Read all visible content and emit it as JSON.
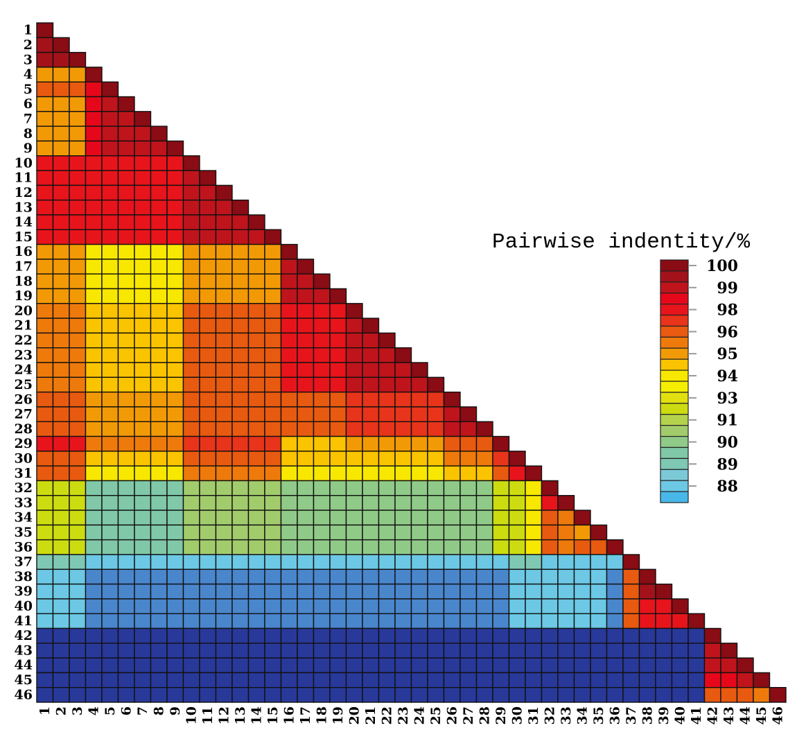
{
  "chart_data": {
    "type": "heatmap",
    "title": "Pairwise indentity/%",
    "xlabel": "",
    "ylabel": "",
    "shape": "lower-triangular",
    "categories": [
      "1",
      "2",
      "3",
      "4",
      "5",
      "6",
      "7",
      "8",
      "9",
      "10",
      "11",
      "12",
      "13",
      "14",
      "15",
      "16",
      "17",
      "18",
      "19",
      "20",
      "21",
      "22",
      "23",
      "24",
      "25",
      "26",
      "27",
      "28",
      "29",
      "30",
      "31",
      "32",
      "33",
      "34",
      "35",
      "36",
      "37",
      "38",
      "39",
      "40",
      "41",
      "42",
      "43",
      "44",
      "45",
      "46"
    ],
    "diagonal_value": 100,
    "blocks_note_order": "later blocks override earlier ones; only cells with col <= row are shown",
    "blocks": [
      {
        "rows": [
          2,
          3
        ],
        "cols": [
          1,
          2
        ],
        "value": 99.5
      },
      {
        "rows": [
          4,
          9
        ],
        "cols": [
          1,
          3
        ],
        "value": 95
      },
      {
        "rows": [
          5,
          5
        ],
        "cols": [
          1,
          3
        ],
        "value": 96
      },
      {
        "rows": [
          4,
          9
        ],
        "cols": [
          4,
          8
        ],
        "value": 99
      },
      {
        "rows": [
          5,
          9
        ],
        "cols": [
          4,
          4
        ],
        "value": 98.5
      },
      {
        "rows": [
          10,
          15
        ],
        "cols": [
          1,
          9
        ],
        "value": 97.5
      },
      {
        "rows": [
          10,
          15
        ],
        "cols": [
          4,
          8
        ],
        "value": 98
      },
      {
        "rows": [
          10,
          15
        ],
        "cols": [
          10,
          14
        ],
        "value": 99
      },
      {
        "rows": [
          16,
          19
        ],
        "cols": [
          1,
          3
        ],
        "value": 95
      },
      {
        "rows": [
          16,
          19
        ],
        "cols": [
          4,
          9
        ],
        "value": 94
      },
      {
        "rows": [
          16,
          19
        ],
        "cols": [
          10,
          15
        ],
        "value": 95
      },
      {
        "rows": [
          16,
          19
        ],
        "cols": [
          16,
          18
        ],
        "value": 99
      },
      {
        "rows": [
          20,
          25
        ],
        "cols": [
          1,
          3
        ],
        "value": 95.5
      },
      {
        "rows": [
          20,
          25
        ],
        "cols": [
          4,
          9
        ],
        "value": 94.5
      },
      {
        "rows": [
          20,
          25
        ],
        "cols": [
          10,
          15
        ],
        "value": 96
      },
      {
        "rows": [
          20,
          25
        ],
        "cols": [
          16,
          19
        ],
        "value": 98
      },
      {
        "rows": [
          20,
          25
        ],
        "cols": [
          20,
          24
        ],
        "value": 99
      },
      {
        "rows": [
          26,
          28
        ],
        "cols": [
          1,
          3
        ],
        "value": 96
      },
      {
        "rows": [
          26,
          28
        ],
        "cols": [
          4,
          9
        ],
        "value": 95
      },
      {
        "rows": [
          26,
          28
        ],
        "cols": [
          10,
          19
        ],
        "value": 96
      },
      {
        "rows": [
          26,
          28
        ],
        "cols": [
          20,
          25
        ],
        "value": 97
      },
      {
        "rows": [
          26,
          28
        ],
        "cols": [
          26,
          27
        ],
        "value": 99
      },
      {
        "rows": [
          29,
          29
        ],
        "cols": [
          1,
          3
        ],
        "value": 98
      },
      {
        "rows": [
          29,
          29
        ],
        "cols": [
          4,
          9
        ],
        "value": 95.5
      },
      {
        "rows": [
          29,
          29
        ],
        "cols": [
          10,
          15
        ],
        "value": 97
      },
      {
        "rows": [
          29,
          29
        ],
        "cols": [
          16,
          19
        ],
        "value": 94.5
      },
      {
        "rows": [
          29,
          29
        ],
        "cols": [
          20,
          25
        ],
        "value": 95
      },
      {
        "rows": [
          29,
          29
        ],
        "cols": [
          26,
          28
        ],
        "value": 96
      },
      {
        "rows": [
          30,
          30
        ],
        "cols": [
          1,
          3
        ],
        "value": 96
      },
      {
        "rows": [
          30,
          30
        ],
        "cols": [
          4,
          9
        ],
        "value": 94.5
      },
      {
        "rows": [
          30,
          30
        ],
        "cols": [
          10,
          15
        ],
        "value": 96
      },
      {
        "rows": [
          30,
          30
        ],
        "cols": [
          16,
          25
        ],
        "value": 94.5
      },
      {
        "rows": [
          30,
          30
        ],
        "cols": [
          26,
          28
        ],
        "value": 95.5
      },
      {
        "rows": [
          30,
          30
        ],
        "cols": [
          29,
          29
        ],
        "value": 97
      },
      {
        "rows": [
          31,
          31
        ],
        "cols": [
          1,
          3
        ],
        "value": 96
      },
      {
        "rows": [
          31,
          31
        ],
        "cols": [
          4,
          9
        ],
        "value": 94
      },
      {
        "rows": [
          31,
          31
        ],
        "cols": [
          10,
          15
        ],
        "value": 95.5
      },
      {
        "rows": [
          31,
          31
        ],
        "cols": [
          16,
          25
        ],
        "value": 94
      },
      {
        "rows": [
          31,
          31
        ],
        "cols": [
          26,
          28
        ],
        "value": 94.5
      },
      {
        "rows": [
          31,
          31
        ],
        "cols": [
          29,
          29
        ],
        "value": 96
      },
      {
        "rows": [
          31,
          31
        ],
        "cols": [
          30,
          30
        ],
        "value": 98
      },
      {
        "rows": [
          32,
          36
        ],
        "cols": [
          1,
          3
        ],
        "value": 92
      },
      {
        "rows": [
          32,
          36
        ],
        "cols": [
          4,
          9
        ],
        "value": 89.5
      },
      {
        "rows": [
          32,
          36
        ],
        "cols": [
          10,
          15
        ],
        "value": 90.5
      },
      {
        "rows": [
          32,
          36
        ],
        "cols": [
          16,
          28
        ],
        "value": 90
      },
      {
        "rows": [
          32,
          36
        ],
        "cols": [
          29,
          30
        ],
        "value": 92
      },
      {
        "rows": [
          32,
          36
        ],
        "cols": [
          31,
          31
        ],
        "value": 94
      },
      {
        "rows": [
          33,
          33
        ],
        "cols": [
          32,
          32
        ],
        "value": 98
      },
      {
        "rows": [
          34,
          36
        ],
        "cols": [
          32,
          32
        ],
        "value": 96
      },
      {
        "rows": [
          34,
          36
        ],
        "cols": [
          33,
          33
        ],
        "value": 95.5
      },
      {
        "rows": [
          36,
          36
        ],
        "cols": [
          34,
          35
        ],
        "value": 96
      },
      {
        "rows": [
          37,
          37
        ],
        "cols": [
          1,
          3
        ],
        "value": 89
      },
      {
        "rows": [
          37,
          37
        ],
        "cols": [
          4,
          36
        ],
        "value": 88
      },
      {
        "rows": [
          37,
          37
        ],
        "cols": [
          30,
          31
        ],
        "value": 89
      },
      {
        "rows": [
          38,
          41
        ],
        "cols": [
          1,
          3
        ],
        "value": 88
      },
      {
        "rows": [
          38,
          41
        ],
        "cols": [
          4,
          29
        ],
        "value": 86
      },
      {
        "rows": [
          38,
          41
        ],
        "cols": [
          30,
          35
        ],
        "value": 88
      },
      {
        "rows": [
          38,
          41
        ],
        "cols": [
          36,
          36
        ],
        "value": 86
      },
      {
        "rows": [
          38,
          41
        ],
        "cols": [
          37,
          37
        ],
        "value": 96
      },
      {
        "rows": [
          39,
          39
        ],
        "cols": [
          38,
          38
        ],
        "value": 99.5
      },
      {
        "rows": [
          40,
          41
        ],
        "cols": [
          38,
          40
        ],
        "value": 98
      },
      {
        "rows": [
          42,
          46
        ],
        "cols": [
          1,
          41
        ],
        "value": 80
      },
      {
        "rows": [
          43,
          46
        ],
        "cols": [
          42,
          45
        ],
        "value": 99
      },
      {
        "rows": [
          45,
          45
        ],
        "cols": [
          42,
          43
        ],
        "value": 98.5
      },
      {
        "rows": [
          46,
          46
        ],
        "cols": [
          42,
          44
        ],
        "value": 96
      },
      {
        "rows": [
          46,
          46
        ],
        "cols": [
          45,
          45
        ],
        "value": 95.5
      }
    ],
    "legend": {
      "title": "Pairwise indentity/%",
      "placement": "right",
      "tick_labels": [
        "100",
        "99",
        "98",
        "96",
        "95",
        "94",
        "93",
        "91",
        "90",
        "89",
        "88"
      ],
      "blocks": [
        {
          "value": 100,
          "color": "#8a0c14"
        },
        {
          "value": 99.5,
          "color": "#a3121a"
        },
        {
          "value": 99,
          "color": "#c0141c"
        },
        {
          "value": 98.5,
          "color": "#e6081a"
        },
        {
          "value": 98,
          "color": "#e8141c"
        },
        {
          "value": 97,
          "color": "#e8341a"
        },
        {
          "value": 96,
          "color": "#e85a10"
        },
        {
          "value": 95.5,
          "color": "#ee7a0c"
        },
        {
          "value": 95,
          "color": "#f29a06"
        },
        {
          "value": 94.5,
          "color": "#fbc400"
        },
        {
          "value": 94,
          "color": "#f8e800"
        },
        {
          "value": 93.5,
          "color": "#f6ee00"
        },
        {
          "value": 93,
          "color": "#e2e010"
        },
        {
          "value": 92,
          "color": "#ccdc10"
        },
        {
          "value": 91,
          "color": "#b4d24c"
        },
        {
          "value": 90.5,
          "color": "#a2cc6c"
        },
        {
          "value": 90,
          "color": "#90ca88"
        },
        {
          "value": 89.5,
          "color": "#80c8a8"
        },
        {
          "value": 89,
          "color": "#7ec8b4"
        },
        {
          "value": 88.5,
          "color": "#7ccad8"
        },
        {
          "value": 88,
          "color": "#6cc8e4"
        },
        {
          "value": 87.5,
          "color": "#48b8e8"
        }
      ],
      "below_scale_colors": [
        {
          "value": 86,
          "color": "#4a86cc"
        },
        {
          "value": 80,
          "color": "#28399a"
        }
      ]
    },
    "grid": false
  }
}
